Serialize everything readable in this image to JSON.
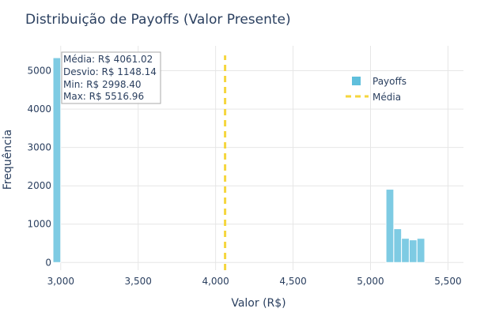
{
  "chart_data": {
    "type": "bar",
    "title": "Distribuição de Payoffs (Valor Presente)",
    "xlabel": "Valor (R$)",
    "ylabel": "Frequência",
    "xlim": [
      2950,
      5600
    ],
    "ylim": [
      -200,
      5650
    ],
    "grid": true,
    "x_ticks": [
      3000,
      3500,
      4000,
      4500,
      5000,
      5500
    ],
    "x_tick_labels": [
      "3,000",
      "3,500",
      "4,000",
      "4,500",
      "5,000",
      "5,500"
    ],
    "y_ticks": [
      0,
      1000,
      2000,
      3000,
      4000,
      5000
    ],
    "y_tick_labels": [
      "0",
      "1000",
      "2000",
      "3000",
      "4000",
      "5000"
    ],
    "series": [
      {
        "name": "Payoffs",
        "color": "#7ecbe3",
        "bins": [
          {
            "x0": 2950,
            "x1": 3000,
            "count": 5340
          },
          {
            "x0": 5100,
            "x1": 5150,
            "count": 1910
          },
          {
            "x0": 5150,
            "x1": 5200,
            "count": 880
          },
          {
            "x0": 5200,
            "x1": 5250,
            "count": 630
          },
          {
            "x0": 5250,
            "x1": 5300,
            "count": 590
          },
          {
            "x0": 5300,
            "x1": 5350,
            "count": 630
          }
        ]
      },
      {
        "name": "Média",
        "color": "#f5d63d",
        "style": "dash",
        "x": 4061.02,
        "y_range": [
          -200,
          5400
        ]
      }
    ],
    "legend": {
      "position": "top-right",
      "items": [
        {
          "label": "Payoffs",
          "symbol": "square",
          "color": "#7ecbe3"
        },
        {
          "label": "Média",
          "symbol": "dash",
          "color": "#f5d63d"
        }
      ]
    },
    "annotation": {
      "lines": [
        "Média: R$ 4061.02",
        "Desvio: R$ 1148.14",
        "Min: R$ 2998.40",
        "Max: R$ 5516.96"
      ]
    }
  }
}
